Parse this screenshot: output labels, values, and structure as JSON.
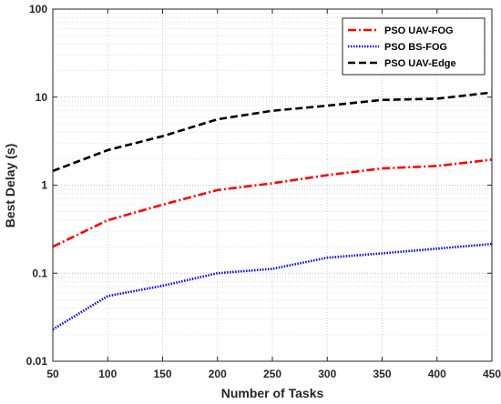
{
  "chart_data": {
    "type": "line",
    "xlabel": "Number of Tasks",
    "ylabel": "Best Delay (s)",
    "x": [
      50,
      100,
      150,
      200,
      250,
      300,
      350,
      400,
      450
    ],
    "xlim": [
      50,
      450
    ],
    "ylim": [
      0.01,
      100
    ],
    "yscale": "log",
    "grid": true,
    "minor_grid": true,
    "legend_position": "top-right",
    "x_ticks": [
      50,
      100,
      150,
      200,
      250,
      300,
      350,
      400,
      450
    ],
    "x_tick_labels": [
      "50",
      "100",
      "150",
      "200",
      "250",
      "300",
      "350",
      "400",
      "450"
    ],
    "y_ticks": [
      0.01,
      0.1,
      1,
      10,
      100
    ],
    "y_tick_labels": [
      "0.01",
      "0.1",
      "1",
      "10",
      "100"
    ],
    "series": [
      {
        "name": "PSO UAV-FOG",
        "color": "#ff0000",
        "line_style": "dash-dot",
        "values": [
          0.2,
          0.4,
          0.6,
          0.88,
          1.05,
          1.3,
          1.55,
          1.65,
          1.95
        ]
      },
      {
        "name": "PSO BS-FOG",
        "color": "#0000ff",
        "line_style": "dotted",
        "values": [
          0.023,
          0.055,
          0.072,
          0.1,
          0.112,
          0.15,
          0.168,
          0.19,
          0.215
        ]
      },
      {
        "name": "PSO UAV-Edge",
        "color": "#000000",
        "line_style": "dashed",
        "values": [
          1.45,
          2.5,
          3.6,
          5.6,
          7.0,
          8.0,
          9.3,
          9.6,
          11.3
        ]
      }
    ]
  }
}
